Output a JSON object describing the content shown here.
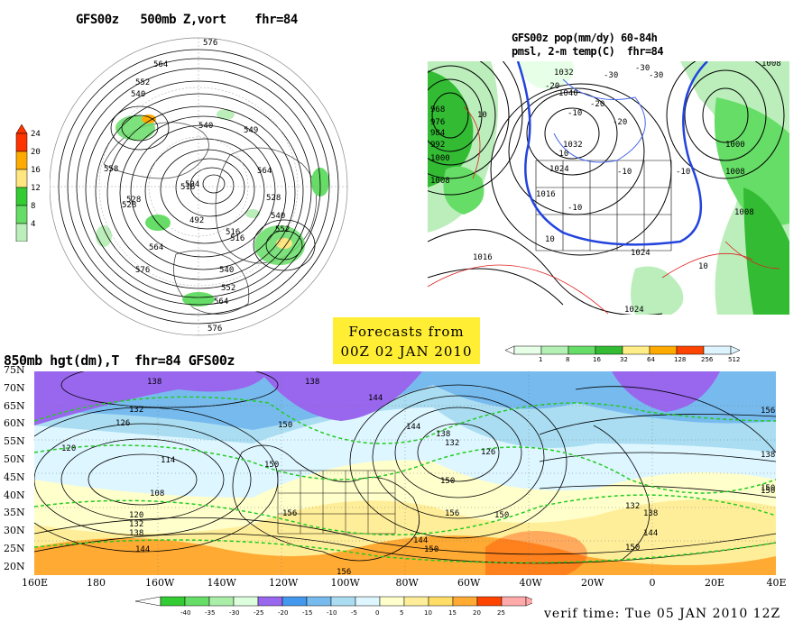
{
  "panels": {
    "vort500": {
      "title": "GFS00z   500mb Z,vort    fhr=84",
      "contour_labels": [
        "576",
        "564",
        "552",
        "540",
        "540",
        "549",
        "528",
        "516",
        "564",
        "504",
        "492",
        "516",
        "528",
        "540",
        "552",
        "564",
        "576",
        "558",
        "528",
        "516",
        "540",
        "552",
        "564",
        "576"
      ],
      "legend_ticks": [
        "24",
        "20",
        "16",
        "12",
        "8",
        "4"
      ],
      "legend_colors": [
        "#ff3300",
        "#ffaa00",
        "#ffe680",
        "#33cc33",
        "#66dd66",
        "#bbeebb"
      ]
    },
    "precip": {
      "title_line1": "GFS00z pop(mm/dy) 60-84h",
      "title_line2": "pmsl, 2-m temp(C)  fhr=84",
      "contour_labels": [
        "1008",
        "1008",
        "1000",
        "992",
        "984",
        "976",
        "968",
        "1032",
        "1040",
        "1032",
        "1024",
        "1016",
        "1016",
        "1024",
        "1008",
        "1000",
        "1008",
        "1024"
      ],
      "temp_labels": [
        "-10",
        "-20",
        "-30",
        "-30",
        "-20",
        "-10",
        "-10",
        "-10",
        "-10",
        "10",
        "10",
        "10",
        "-30",
        "-20"
      ],
      "legend_ticks": [
        "1",
        "8",
        "16",
        "32",
        "64",
        "128",
        "256",
        "512"
      ],
      "legend_colors": [
        "#e6ffe6",
        "#b3f0b3",
        "#66dd66",
        "#33bb33",
        "#ffee88",
        "#ffaa00",
        "#ff4400",
        "#ddf4ff"
      ]
    },
    "hgt850": {
      "title": "850mb hgt(dm),T  fhr=84 GFS00z",
      "lat_labels": [
        "75N",
        "70N",
        "65N",
        "60N",
        "55N",
        "50N",
        "45N",
        "40N",
        "35N",
        "30N",
        "25N",
        "20N"
      ],
      "lon_labels": [
        "160E",
        "180",
        "160W",
        "140W",
        "120W",
        "100W",
        "80W",
        "60W",
        "40W",
        "20W",
        "0",
        "20E",
        "40E"
      ],
      "height_labels": [
        "138",
        "132",
        "126",
        "120",
        "114",
        "108",
        "120",
        "132",
        "138",
        "144",
        "138",
        "144",
        "150",
        "150",
        "156",
        "156",
        "144",
        "138",
        "132",
        "126",
        "150",
        "156",
        "150",
        "144",
        "150",
        "132",
        "138",
        "150",
        "156",
        "144",
        "138",
        "150",
        "150"
      ],
      "temp_legend_ticks": [
        "-40",
        "-35",
        "-30",
        "-25",
        "-20",
        "-15",
        "-10",
        "-5",
        "0",
        "5",
        "10",
        "15",
        "20",
        "25"
      ],
      "temp_legend_colors": [
        "#33cc33",
        "#66dd66",
        "#aaeeaa",
        "#ddffdd",
        "#9966ee",
        "#4499ee",
        "#77bbee",
        "#aaddf2",
        "#ddf6ff",
        "#ffffcc",
        "#ffee99",
        "#ffdd66",
        "#ffaa33",
        "#ff4400",
        "#ffaaaa"
      ]
    }
  },
  "forecast_box": {
    "line1": "Forecasts from",
    "line2": "00Z 02 JAN 2010",
    "color": "#ffee33"
  },
  "verif_time": "verif time: Tue 05 JAN 2010 12Z"
}
